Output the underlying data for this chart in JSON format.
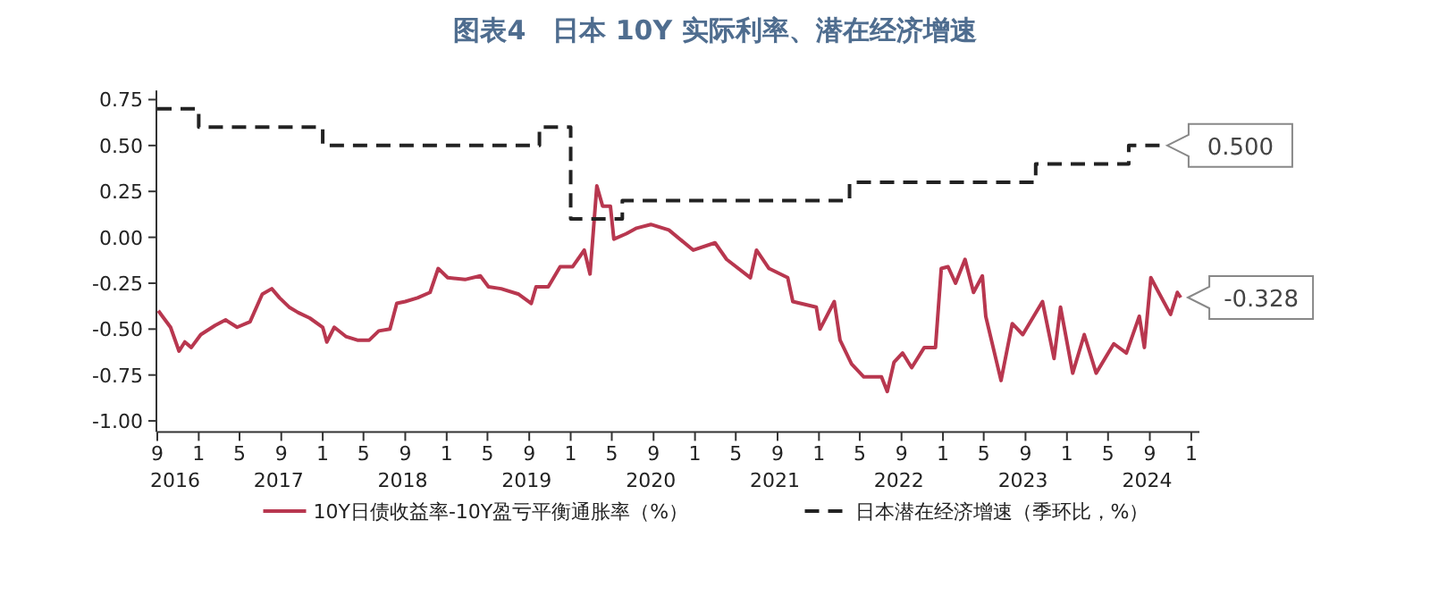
{
  "chart_data": {
    "type": "line",
    "title": "图表4　日本 10Y 实际利率、潜在经济增速",
    "series": [
      {
        "name": "10Y日债收益率-10Y盈亏平衡通胀率（%）",
        "type": "line",
        "color": "#b8374f",
        "line_style": "solid",
        "x": [
          "2016-09-04",
          "2016-09-16",
          "2016-10-10",
          "2016-11-04",
          "2016-11-21",
          "2016-12-10",
          "2017-01-07",
          "2017-02-18",
          "2017-03-21",
          "2017-04-24",
          "2017-06-01",
          "2017-07-07",
          "2017-08-04",
          "2017-08-27",
          "2017-09-24",
          "2017-10-21",
          "2017-11-24",
          "2018-01-01",
          "2018-01-13",
          "2018-02-04",
          "2018-03-10",
          "2018-04-13",
          "2018-05-18",
          "2018-06-15",
          "2018-07-18",
          "2018-08-07",
          "2018-09-01",
          "2018-10-07",
          "2018-11-13",
          "2018-12-07",
          "2019-01-04",
          "2019-02-24",
          "2019-04-10",
          "2019-05-04",
          "2019-06-10",
          "2019-08-01",
          "2019-09-07",
          "2019-09-21",
          "2019-10-27",
          "2019-12-01",
          "2020-01-07",
          "2020-02-10",
          "2020-02-27",
          "2020-03-18",
          "2020-04-04",
          "2020-04-27",
          "2020-05-07",
          "2020-06-13",
          "2020-07-13",
          "2020-08-24",
          "2020-10-16",
          "2020-12-27",
          "2021-03-01",
          "2021-04-04",
          "2021-06-13",
          "2021-07-01",
          "2021-08-07",
          "2021-10-01",
          "2021-10-16",
          "2021-12-24",
          "2022-01-04",
          "2022-02-15",
          "2022-03-04",
          "2022-04-07",
          "2022-05-13",
          "2022-07-04",
          "2022-07-21",
          "2022-08-10",
          "2022-09-04",
          "2022-10-01",
          "2022-11-07",
          "2022-12-10",
          "2022-12-27",
          "2023-01-16",
          "2023-02-07",
          "2023-03-07",
          "2023-04-01",
          "2023-04-27",
          "2023-05-07",
          "2023-06-21",
          "2023-07-24",
          "2023-08-24",
          "2023-10-21",
          "2023-11-24",
          "2023-12-13",
          "2024-01-18",
          "2024-02-21",
          "2024-03-27",
          "2024-05-18",
          "2024-06-24",
          "2024-08-01",
          "2024-08-16",
          "2024-09-04",
          "2024-09-27",
          "2024-11-01",
          "2024-11-21",
          "2024-12-01"
        ],
        "values": [
          -0.4,
          -0.43,
          -0.49,
          -0.62,
          -0.57,
          -0.6,
          -0.53,
          -0.48,
          -0.45,
          -0.49,
          -0.46,
          -0.31,
          -0.28,
          -0.33,
          -0.38,
          -0.41,
          -0.44,
          -0.49,
          -0.57,
          -0.49,
          -0.54,
          -0.56,
          -0.56,
          -0.51,
          -0.5,
          -0.36,
          -0.35,
          -0.33,
          -0.3,
          -0.17,
          -0.22,
          -0.23,
          -0.21,
          -0.27,
          -0.28,
          -0.31,
          -0.36,
          -0.27,
          -0.27,
          -0.16,
          -0.16,
          -0.07,
          -0.2,
          0.28,
          0.17,
          0.17,
          -0.01,
          0.02,
          0.05,
          0.07,
          0.04,
          -0.07,
          -0.03,
          -0.12,
          -0.22,
          -0.07,
          -0.17,
          -0.22,
          -0.35,
          -0.38,
          -0.5,
          -0.35,
          -0.56,
          -0.69,
          -0.76,
          -0.76,
          -0.84,
          -0.68,
          -0.63,
          -0.71,
          -0.6,
          -0.6,
          -0.17,
          -0.16,
          -0.25,
          -0.12,
          -0.3,
          -0.21,
          -0.43,
          -0.78,
          -0.47,
          -0.53,
          -0.35,
          -0.66,
          -0.38,
          -0.74,
          -0.53,
          -0.74,
          -0.58,
          -0.63,
          -0.43,
          -0.6,
          -0.22,
          -0.3,
          -0.42,
          -0.3,
          -0.328
        ]
      },
      {
        "name": "日本潜在经济增速（季环比，%）",
        "type": "step",
        "color": "#222222",
        "line_style": "dashed",
        "x": [
          "2016-09",
          "2017-01",
          "2018-01",
          "2019-10",
          "2020-01",
          "2020-06",
          "2022-04",
          "2023-10",
          "2024-07",
          "2024-10"
        ],
        "values": [
          0.7,
          0.6,
          0.5,
          0.6,
          0.1,
          0.2,
          0.3,
          0.4,
          0.5,
          0.5
        ]
      }
    ],
    "xlim": [
      "2016-09",
      "2025-01-25"
    ],
    "xticks": [
      {
        "value": "2016-09",
        "label": "9"
      },
      {
        "value": "2017-01",
        "label": "1"
      },
      {
        "value": "2017-05",
        "label": "5"
      },
      {
        "value": "2017-09",
        "label": "9"
      },
      {
        "value": "2018-01",
        "label": "1"
      },
      {
        "value": "2018-05",
        "label": "5"
      },
      {
        "value": "2018-09",
        "label": "9"
      },
      {
        "value": "2019-01",
        "label": "1"
      },
      {
        "value": "2019-05",
        "label": "5"
      },
      {
        "value": "2019-09",
        "label": "9"
      },
      {
        "value": "2020-01",
        "label": "1"
      },
      {
        "value": "2020-05",
        "label": "5"
      },
      {
        "value": "2020-09",
        "label": "9"
      },
      {
        "value": "2021-01",
        "label": "1"
      },
      {
        "value": "2021-05",
        "label": "5"
      },
      {
        "value": "2021-09",
        "label": "9"
      },
      {
        "value": "2022-01",
        "label": "1"
      },
      {
        "value": "2022-05",
        "label": "5"
      },
      {
        "value": "2022-09",
        "label": "9"
      },
      {
        "value": "2023-01",
        "label": "1"
      },
      {
        "value": "2023-05",
        "label": "5"
      },
      {
        "value": "2023-09",
        "label": "9"
      },
      {
        "value": "2024-01",
        "label": "1"
      },
      {
        "value": "2024-05",
        "label": "5"
      },
      {
        "value": "2024-09",
        "label": "9"
      },
      {
        "value": "2025-01",
        "label": "1"
      }
    ],
    "ylim": [
      -1.06,
      0.8
    ],
    "yticks": [
      {
        "value": 0.75,
        "label": "0.75"
      },
      {
        "value": 0.5,
        "label": "0.50"
      },
      {
        "value": 0.25,
        "label": "0.25"
      },
      {
        "value": 0,
        "label": "0.00"
      },
      {
        "value": -0.25,
        "label": "-0.25"
      },
      {
        "value": -0.5,
        "label": "-0.50"
      },
      {
        "value": -0.75,
        "label": "-0.75"
      },
      {
        "value": -1,
        "label": "-1.00"
      }
    ],
    "annotations": [
      {
        "text": "0.500",
        "x": "2024-10",
        "y": 0.5
      },
      {
        "text": "-0.328",
        "x": "2024-12-01",
        "y": -0.328
      },
      "2016",
      "2017",
      "2018",
      "2019",
      "2020",
      "2021",
      "2022",
      "2023",
      "2024"
    ],
    "grid": false,
    "marker": "none",
    "legend": "bottom"
  }
}
